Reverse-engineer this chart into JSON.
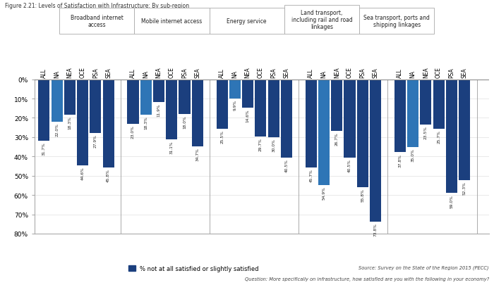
{
  "title": "Figure 2.21: Levels of Satisfaction with Infrastructure: By sub-region",
  "groups": [
    {
      "name": "Broadband internet\naccess",
      "bars": [
        "ALL",
        "NA",
        "NEA",
        "OCE",
        "PSA",
        "SEA"
      ],
      "values": [
        31.7,
        22.0,
        18.3,
        44.6,
        27.9,
        45.8
      ]
    },
    {
      "name": "Mobile internet access",
      "bars": [
        "ALL",
        "NA",
        "NEA",
        "OCE",
        "PSA",
        "SEA"
      ],
      "values": [
        23.0,
        18.3,
        11.9,
        31.1,
        18.0,
        34.7
      ]
    },
    {
      "name": "Energy service",
      "bars": [
        "ALL",
        "NA",
        "NEA",
        "OCE",
        "PSA",
        "SEA"
      ],
      "values": [
        25.5,
        9.9,
        14.6,
        29.7,
        30.0,
        40.5
      ]
    },
    {
      "name": "Land transport,\nincluding rail and road\nlinkages",
      "bars": [
        "ALL",
        "NA",
        "NEA",
        "OCE",
        "PSA",
        "SEA"
      ],
      "values": [
        45.7,
        54.9,
        26.7,
        40.5,
        55.8,
        73.8
      ]
    },
    {
      "name": "Sea transport, ports and\nshipping linkages",
      "bars": [
        "ALL",
        "NA",
        "NEA",
        "OCE",
        "PSA",
        "SEA"
      ],
      "values": [
        37.8,
        35.0,
        23.5,
        25.7,
        59.0,
        52.3
      ]
    }
  ],
  "bar_color_dark": "#1b3f7e",
  "bar_color_light": "#2e75b6",
  "legend_label": "% not at all satisfied or slightly satisfied",
  "source_text": "Source: Survey on the State of the Region 2015 (PECC)",
  "question_text": "Question: More specifically on infrastructure, how satisfied are you with the following in your economy?",
  "ymax": 80,
  "yticks": [
    0,
    10,
    20,
    30,
    40,
    50,
    60,
    70,
    80
  ],
  "background_color": "#ffffff"
}
